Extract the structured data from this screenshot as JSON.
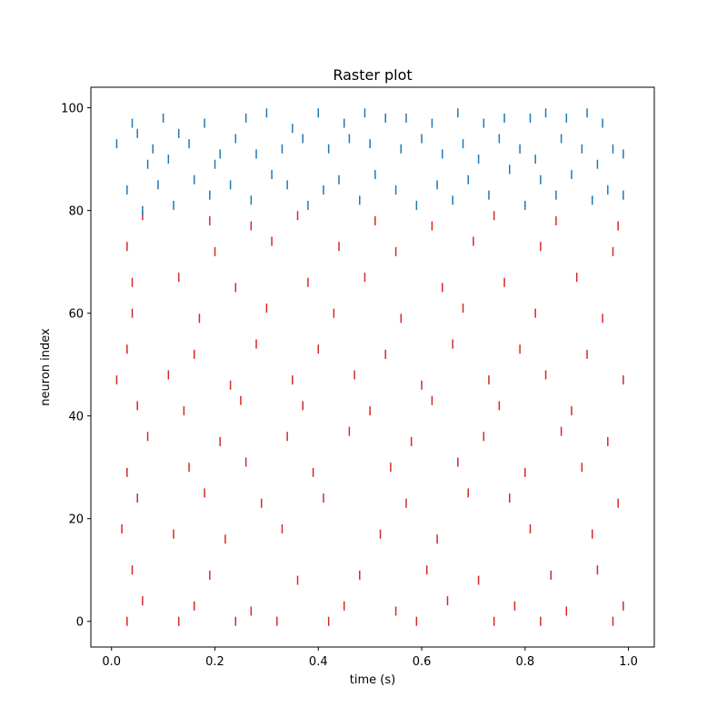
{
  "chart_data": {
    "type": "scatter",
    "marker": "vertical-tick",
    "title": "Raster plot",
    "xlabel": "time (s)",
    "ylabel": "neuron index",
    "xlim": [
      -0.04,
      1.05
    ],
    "ylim": [
      -5,
      104
    ],
    "xticks": [
      0.0,
      0.2,
      0.4,
      0.6,
      0.8,
      1.0
    ],
    "xtick_labels": [
      "0.0",
      "0.2",
      "0.4",
      "0.6",
      "0.8",
      "1.0"
    ],
    "yticks": [
      0,
      20,
      40,
      60,
      80,
      100
    ],
    "ytick_labels": [
      "0",
      "20",
      "40",
      "60",
      "80",
      "100"
    ],
    "grid": false,
    "legend": "none",
    "n_neurons": 100,
    "series": [
      {
        "neurons": [
          0,
          79
        ],
        "color": "#d62728",
        "spike_rate_hz": 20,
        "spikes": [
          [
            0.03,
            0
          ],
          [
            0.13,
            0
          ],
          [
            0.24,
            0
          ],
          [
            0.32,
            0
          ],
          [
            0.42,
            0
          ],
          [
            0.59,
            0
          ],
          [
            0.74,
            0
          ],
          [
            0.83,
            0
          ],
          [
            0.97,
            0
          ],
          [
            0.06,
            4
          ],
          [
            0.16,
            3
          ],
          [
            0.27,
            2
          ],
          [
            0.45,
            3
          ],
          [
            0.55,
            2
          ],
          [
            0.65,
            4
          ],
          [
            0.78,
            3
          ],
          [
            0.88,
            2
          ],
          [
            0.99,
            3
          ],
          [
            0.04,
            10
          ],
          [
            0.19,
            9
          ],
          [
            0.36,
            8
          ],
          [
            0.48,
            9
          ],
          [
            0.61,
            10
          ],
          [
            0.71,
            8
          ],
          [
            0.85,
            9
          ],
          [
            0.94,
            10
          ],
          [
            0.02,
            18
          ],
          [
            0.12,
            17
          ],
          [
            0.22,
            16
          ],
          [
            0.33,
            18
          ],
          [
            0.52,
            17
          ],
          [
            0.63,
            16
          ],
          [
            0.81,
            18
          ],
          [
            0.93,
            17
          ],
          [
            0.05,
            24
          ],
          [
            0.18,
            25
          ],
          [
            0.29,
            23
          ],
          [
            0.41,
            24
          ],
          [
            0.57,
            23
          ],
          [
            0.69,
            25
          ],
          [
            0.77,
            24
          ],
          [
            0.98,
            23
          ],
          [
            0.03,
            29
          ],
          [
            0.15,
            30
          ],
          [
            0.26,
            31
          ],
          [
            0.39,
            29
          ],
          [
            0.54,
            30
          ],
          [
            0.67,
            31
          ],
          [
            0.8,
            29
          ],
          [
            0.91,
            30
          ],
          [
            0.07,
            36
          ],
          [
            0.21,
            35
          ],
          [
            0.34,
            36
          ],
          [
            0.46,
            37
          ],
          [
            0.58,
            35
          ],
          [
            0.72,
            36
          ],
          [
            0.87,
            37
          ],
          [
            0.96,
            35
          ],
          [
            0.05,
            42
          ],
          [
            0.14,
            41
          ],
          [
            0.25,
            43
          ],
          [
            0.37,
            42
          ],
          [
            0.5,
            41
          ],
          [
            0.62,
            43
          ],
          [
            0.75,
            42
          ],
          [
            0.89,
            41
          ],
          [
            0.01,
            47
          ],
          [
            0.11,
            48
          ],
          [
            0.23,
            46
          ],
          [
            0.35,
            47
          ],
          [
            0.47,
            48
          ],
          [
            0.6,
            46
          ],
          [
            0.73,
            47
          ],
          [
            0.84,
            48
          ],
          [
            0.99,
            47
          ],
          [
            0.03,
            53
          ],
          [
            0.16,
            52
          ],
          [
            0.28,
            54
          ],
          [
            0.4,
            53
          ],
          [
            0.53,
            52
          ],
          [
            0.66,
            54
          ],
          [
            0.79,
            53
          ],
          [
            0.92,
            52
          ],
          [
            0.04,
            60
          ],
          [
            0.17,
            59
          ],
          [
            0.3,
            61
          ],
          [
            0.43,
            60
          ],
          [
            0.56,
            59
          ],
          [
            0.68,
            61
          ],
          [
            0.82,
            60
          ],
          [
            0.95,
            59
          ],
          [
            0.04,
            66
          ],
          [
            0.13,
            67
          ],
          [
            0.24,
            65
          ],
          [
            0.38,
            66
          ],
          [
            0.49,
            67
          ],
          [
            0.64,
            65
          ],
          [
            0.76,
            66
          ],
          [
            0.9,
            67
          ],
          [
            0.03,
            73
          ],
          [
            0.2,
            72
          ],
          [
            0.31,
            74
          ],
          [
            0.44,
            73
          ],
          [
            0.55,
            72
          ],
          [
            0.7,
            74
          ],
          [
            0.83,
            73
          ],
          [
            0.97,
            72
          ],
          [
            0.06,
            79
          ],
          [
            0.19,
            78
          ],
          [
            0.27,
            77
          ],
          [
            0.36,
            79
          ],
          [
            0.51,
            78
          ],
          [
            0.62,
            77
          ],
          [
            0.74,
            79
          ],
          [
            0.86,
            78
          ],
          [
            0.98,
            77
          ]
        ]
      },
      {
        "neurons": [
          80,
          99
        ],
        "color": "#1f77b4",
        "spike_rate_hz": 20,
        "spikes": [
          [
            0.01,
            93
          ],
          [
            0.04,
            97
          ],
          [
            0.07,
            89
          ],
          [
            0.1,
            98
          ],
          [
            0.13,
            95
          ],
          [
            0.18,
            97
          ],
          [
            0.21,
            91
          ],
          [
            0.26,
            98
          ],
          [
            0.3,
            99
          ],
          [
            0.35,
            96
          ],
          [
            0.4,
            99
          ],
          [
            0.45,
            97
          ],
          [
            0.49,
            99
          ],
          [
            0.53,
            98
          ],
          [
            0.57,
            98
          ],
          [
            0.62,
            97
          ],
          [
            0.67,
            99
          ],
          [
            0.72,
            97
          ],
          [
            0.76,
            98
          ],
          [
            0.81,
            98
          ],
          [
            0.84,
            99
          ],
          [
            0.88,
            98
          ],
          [
            0.92,
            99
          ],
          [
            0.95,
            97
          ],
          [
            0.99,
            91
          ],
          [
            0.03,
            84
          ],
          [
            0.06,
            80
          ],
          [
            0.09,
            85
          ],
          [
            0.12,
            81
          ],
          [
            0.16,
            86
          ],
          [
            0.19,
            83
          ],
          [
            0.23,
            85
          ],
          [
            0.27,
            82
          ],
          [
            0.31,
            87
          ],
          [
            0.34,
            85
          ],
          [
            0.38,
            81
          ],
          [
            0.41,
            84
          ],
          [
            0.44,
            86
          ],
          [
            0.48,
            82
          ],
          [
            0.51,
            87
          ],
          [
            0.55,
            84
          ],
          [
            0.59,
            81
          ],
          [
            0.63,
            85
          ],
          [
            0.66,
            82
          ],
          [
            0.69,
            86
          ],
          [
            0.73,
            83
          ],
          [
            0.77,
            88
          ],
          [
            0.8,
            81
          ],
          [
            0.83,
            86
          ],
          [
            0.86,
            83
          ],
          [
            0.89,
            87
          ],
          [
            0.93,
            82
          ],
          [
            0.96,
            84
          ],
          [
            0.99,
            83
          ],
          [
            0.05,
            95
          ],
          [
            0.08,
            92
          ],
          [
            0.11,
            90
          ],
          [
            0.15,
            93
          ],
          [
            0.2,
            89
          ],
          [
            0.24,
            94
          ],
          [
            0.28,
            91
          ],
          [
            0.33,
            92
          ],
          [
            0.37,
            94
          ],
          [
            0.42,
            92
          ],
          [
            0.46,
            94
          ],
          [
            0.5,
            93
          ],
          [
            0.56,
            92
          ],
          [
            0.6,
            94
          ],
          [
            0.64,
            91
          ],
          [
            0.68,
            93
          ],
          [
            0.71,
            90
          ],
          [
            0.75,
            94
          ],
          [
            0.79,
            92
          ],
          [
            0.82,
            90
          ],
          [
            0.87,
            94
          ],
          [
            0.91,
            92
          ],
          [
            0.94,
            89
          ],
          [
            0.97,
            92
          ]
        ]
      }
    ]
  }
}
